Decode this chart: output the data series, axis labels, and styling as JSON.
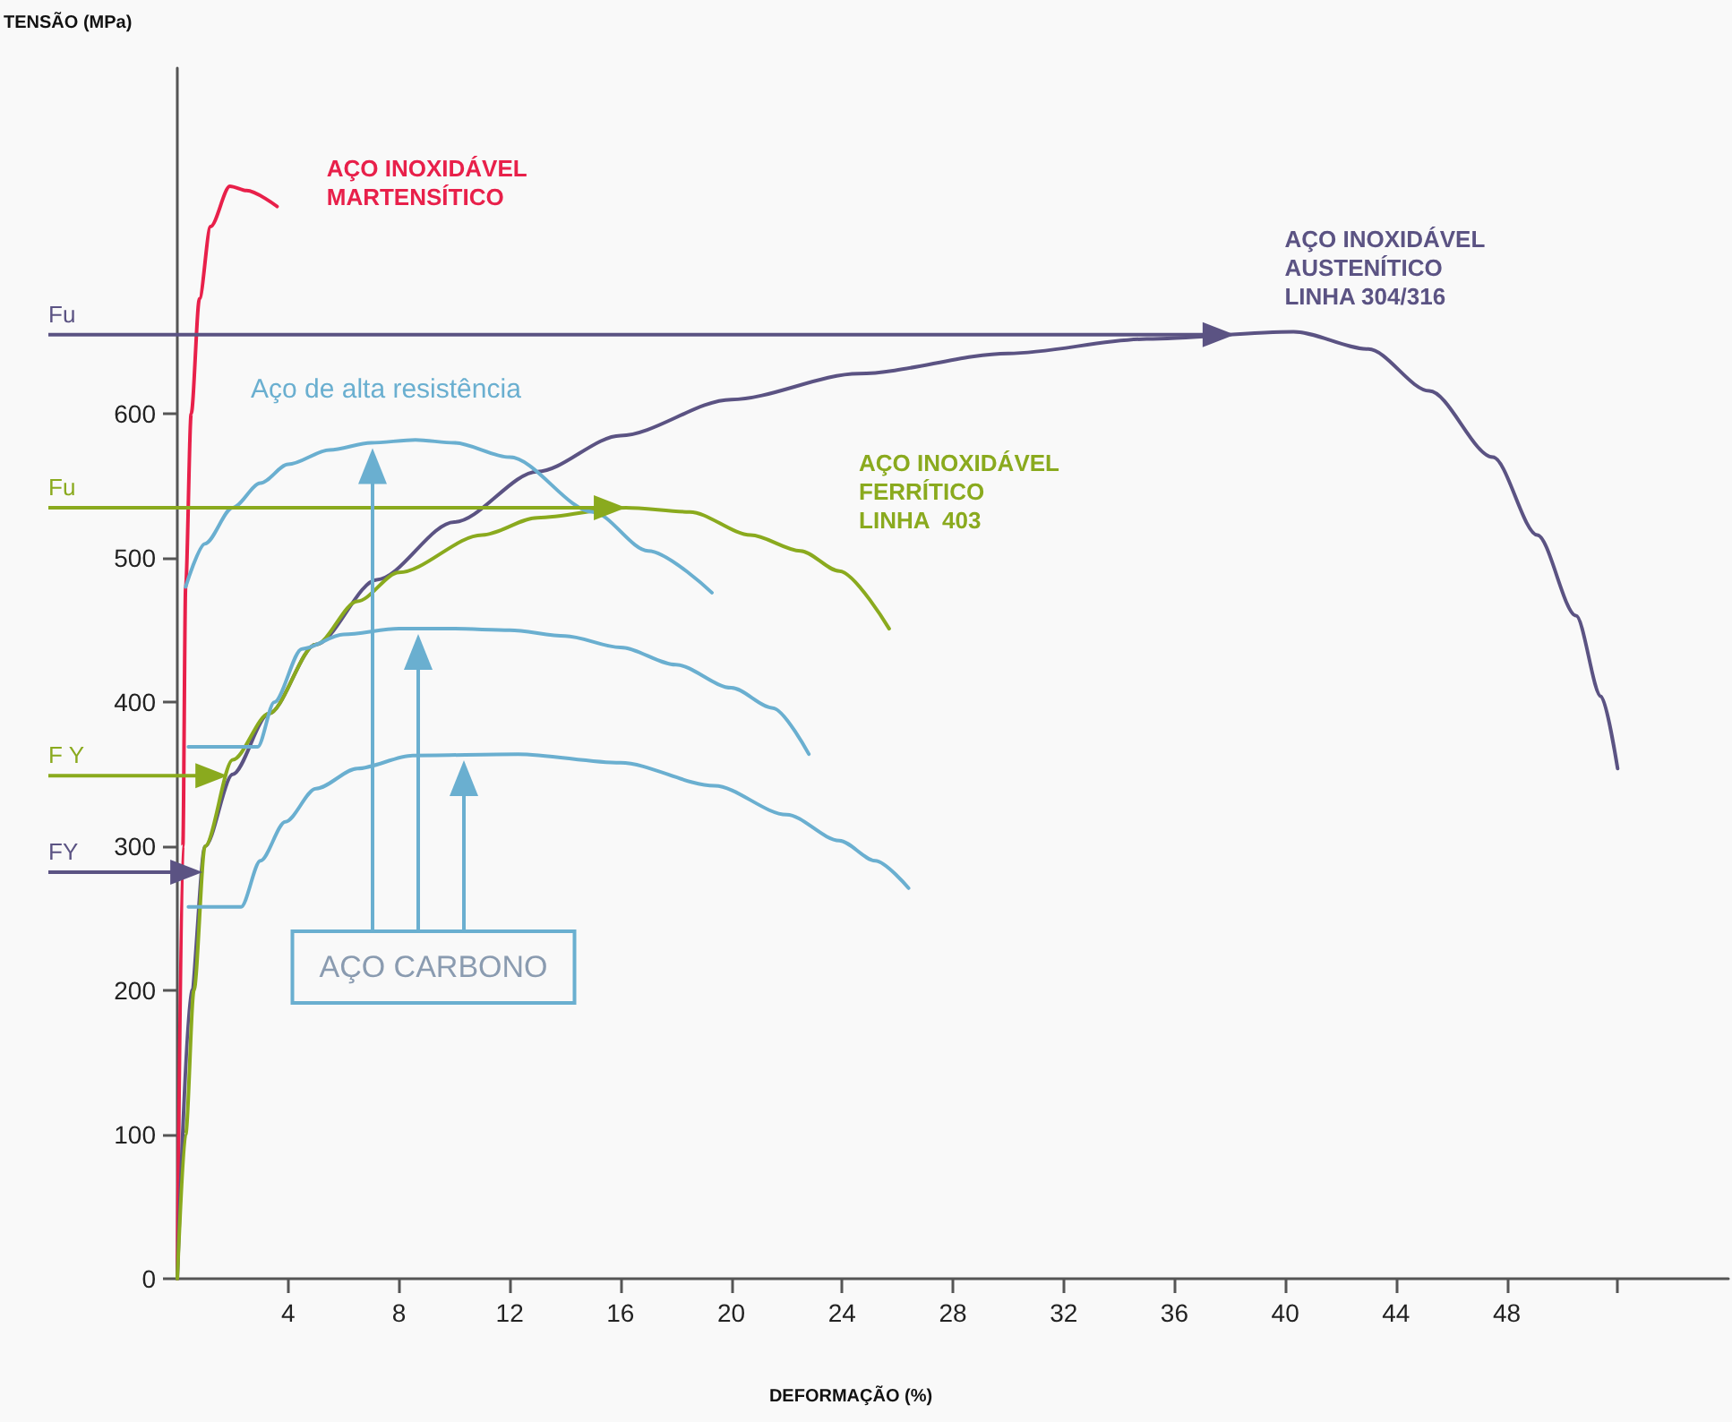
{
  "chart_data": {
    "type": "line",
    "xlabel": "DEFORMAÇÃO (%)",
    "ylabel": "TENSÃO (MPa)",
    "xlim": [
      0,
      56
    ],
    "xticks": [
      4,
      8,
      12,
      16,
      20,
      24,
      28,
      32,
      36,
      40,
      44,
      48,
      {
        "value": 52,
        "label": null
      }
    ],
    "ylim": [
      0,
      840
    ],
    "yticks": [
      0,
      100,
      200,
      300,
      400,
      500,
      600
    ],
    "grid": false,
    "legend": false,
    "marker": "none",
    "series": [
      {
        "name": "AÇO INOXIDÁVEL\nMARTENSÍTICO",
        "color": "#e8204a",
        "x": [
          0,
          0.2,
          0.3,
          0.5,
          0.8,
          1.2,
          1.9,
          2.5,
          3.6
        ],
        "values": [
          0,
          300,
          480,
          600,
          680,
          730,
          758,
          755,
          744
        ]
      },
      {
        "name": "AÇO INOXIDÁVEL\nAUSTENÍTICO\nLINHA 304/316",
        "color": "#5b5383",
        "x": [
          0,
          0.5,
          1,
          2,
          3.3,
          5,
          7.2,
          10,
          13,
          16,
          20,
          24.6,
          30,
          35,
          40.3,
          43,
          45.2,
          47.5,
          49.1,
          50.5,
          51.4,
          52
        ],
        "values": [
          0,
          200,
          300,
          350,
          392,
          440,
          485,
          525,
          560,
          585,
          610,
          628,
          642,
          652,
          657,
          645,
          616,
          570,
          516,
          460,
          404,
          354
        ]
      },
      {
        "name": "AÇO INOXIDÁVEL\nFERRÍTICO\nLINHA  403",
        "color": "#8aaa1e",
        "x": [
          0,
          0.3,
          0.6,
          1,
          2,
          3.3,
          5,
          6.5,
          8,
          11,
          13,
          16.2,
          18.5,
          20.7,
          22.5,
          23.9,
          25.7
        ],
        "values": [
          0,
          100,
          200,
          300,
          360,
          392,
          440,
          470,
          490,
          516,
          528,
          535,
          532,
          516,
          505,
          491,
          451
        ]
      },
      {
        "name": "Aço de alta resistência",
        "color": "#6aafd0",
        "x": [
          0.3,
          1,
          2,
          3,
          4,
          5.5,
          7,
          8.6,
          10,
          12,
          15,
          17,
          19.3
        ],
        "values": [
          480,
          510,
          535,
          552,
          565,
          575,
          580,
          582,
          580,
          570,
          532,
          505,
          476
        ]
      },
      {
        "color": "#6aafd0",
        "x": [
          0.4,
          2.9,
          3.5,
          4.5,
          6,
          8,
          10,
          12,
          14,
          16,
          18,
          20,
          21.5,
          22.8
        ],
        "values": [
          369,
          369,
          400,
          437,
          447,
          451,
          451,
          450,
          446,
          438,
          426,
          410,
          396,
          364
        ]
      },
      {
        "color": "#6aafd0",
        "x": [
          0.4,
          2.3,
          3,
          3.9,
          5,
          6.5,
          8.5,
          12.3,
          16,
          19.4,
          22,
          23.9,
          25.2,
          26.4
        ],
        "values": [
          258,
          258,
          290,
          317,
          340,
          354,
          363,
          364,
          358,
          342,
          322,
          304,
          290,
          271
        ]
      }
    ],
    "ref_lines": [
      {
        "axis": "y",
        "value": 655,
        "label": "Fu",
        "color": "#5b5383"
      },
      {
        "axis": "y",
        "value": 535,
        "label": "Fu",
        "color": "#8aaa1e"
      },
      {
        "axis": "y",
        "value": 349,
        "label": "F Y",
        "color": "#8aaa1e"
      },
      {
        "axis": "y",
        "value": 282,
        "label": "FY",
        "color": "#5b5383"
      }
    ],
    "annotations": [
      "AÇO CARBONO"
    ]
  }
}
